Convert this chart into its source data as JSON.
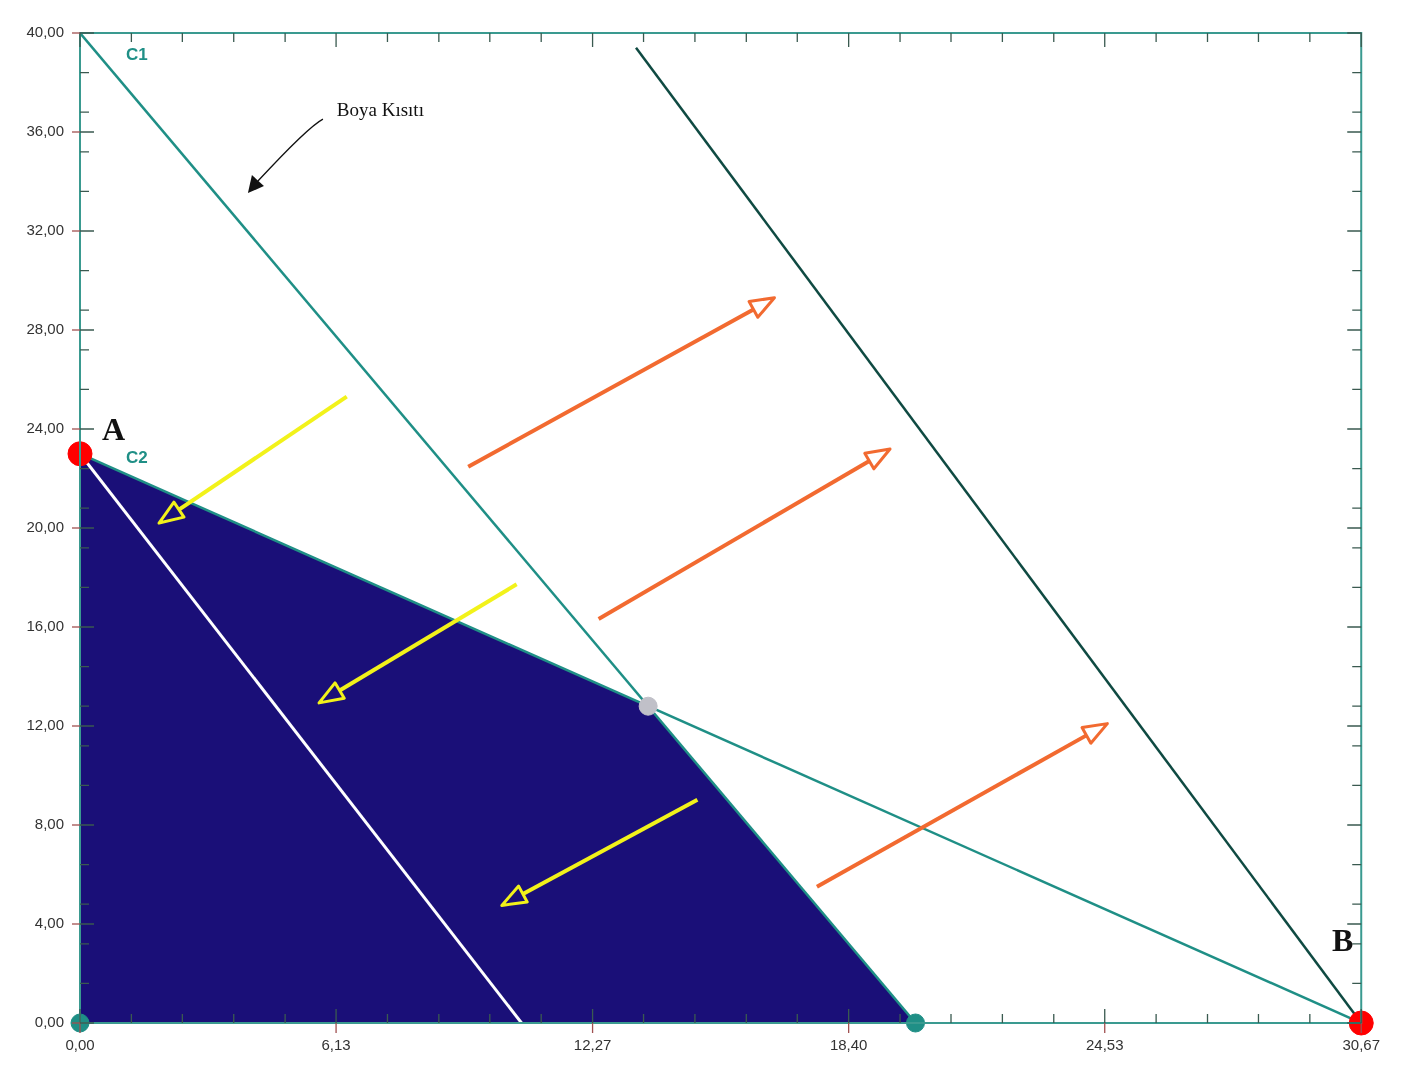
{
  "chart_data": {
    "type": "line",
    "xlim": [
      0,
      30.67
    ],
    "ylim": [
      0,
      40
    ],
    "xticks": [
      {
        "value": 0,
        "label": "0,00"
      },
      {
        "value": 1.23,
        "label": null
      },
      {
        "value": 2.45,
        "label": null
      },
      {
        "value": 3.68,
        "label": null
      },
      {
        "value": 4.91,
        "label": null
      },
      {
        "value": 6.13,
        "label": "6,13"
      },
      {
        "value": 7.36,
        "label": null
      },
      {
        "value": 8.59,
        "label": null
      },
      {
        "value": 9.81,
        "label": null
      },
      {
        "value": 11.04,
        "label": null
      },
      {
        "value": 12.27,
        "label": "12,27"
      },
      {
        "value": 13.49,
        "label": null
      },
      {
        "value": 14.72,
        "label": null
      },
      {
        "value": 15.95,
        "label": null
      },
      {
        "value": 17.17,
        "label": null
      },
      {
        "value": 18.4,
        "label": "18,40"
      },
      {
        "value": 19.63,
        "label": null
      },
      {
        "value": 20.85,
        "label": null
      },
      {
        "value": 22.08,
        "label": null
      },
      {
        "value": 23.31,
        "label": null
      },
      {
        "value": 24.53,
        "label": "24,53"
      },
      {
        "value": 25.76,
        "label": null
      },
      {
        "value": 26.99,
        "label": null
      },
      {
        "value": 28.21,
        "label": null
      },
      {
        "value": 29.44,
        "label": null
      },
      {
        "value": 30.67,
        "label": "30,67"
      }
    ],
    "yticks": [
      {
        "value": 0,
        "label": "0,00"
      },
      {
        "value": 1.6,
        "label": null
      },
      {
        "value": 3.2,
        "label": null
      },
      {
        "value": 4,
        "label": "4,00"
      },
      {
        "value": 4.8,
        "label": null
      },
      {
        "value": 6.4,
        "label": null
      },
      {
        "value": 8,
        "label": "8,00"
      },
      {
        "value": 9.6,
        "label": null
      },
      {
        "value": 11.2,
        "label": null
      },
      {
        "value": 12,
        "label": "12,00"
      },
      {
        "value": 12.8,
        "label": null
      },
      {
        "value": 14.4,
        "label": null
      },
      {
        "value": 16,
        "label": "16,00"
      },
      {
        "value": 17.6,
        "label": null
      },
      {
        "value": 19.2,
        "label": null
      },
      {
        "value": 20,
        "label": "20,00"
      },
      {
        "value": 20.8,
        "label": null
      },
      {
        "value": 22.4,
        "label": null
      },
      {
        "value": 24,
        "label": "24,00"
      },
      {
        "value": 25.6,
        "label": null
      },
      {
        "value": 27.2,
        "label": null
      },
      {
        "value": 28,
        "label": "28,00"
      },
      {
        "value": 28.8,
        "label": null
      },
      {
        "value": 30.4,
        "label": null
      },
      {
        "value": 32,
        "label": "32,00"
      },
      {
        "value": 33.6,
        "label": null
      },
      {
        "value": 35.2,
        "label": null
      },
      {
        "value": 36,
        "label": "36,00"
      },
      {
        "value": 36.8,
        "label": null
      },
      {
        "value": 38.4,
        "label": null
      },
      {
        "value": 40,
        "label": "40,00"
      }
    ],
    "grid": false,
    "legend": false,
    "series": [
      {
        "type": "area",
        "color": "#1a0f78",
        "x": [
          0,
          0,
          13.6,
          20
        ],
        "values": [
          0,
          23,
          12.8,
          0
        ]
      },
      {
        "name": "C1",
        "color": "#1f8f86",
        "x": [
          0,
          20
        ],
        "values": [
          40,
          0
        ]
      },
      {
        "name": "C2",
        "color": "#1f8f86",
        "x": [
          0,
          30.67
        ],
        "values": [
          23,
          0
        ]
      },
      {
        "color": "#0f4a42",
        "x": [
          13.31,
          30.67
        ],
        "values": [
          39.4,
          0
        ]
      },
      {
        "color": "#ffffff",
        "x": [
          0,
          10.57
        ],
        "values": [
          23,
          0
        ]
      },
      {
        "type": "scatter",
        "marker": "circle",
        "color": "#ff0000",
        "x": [
          0,
          30.67
        ],
        "values": [
          23,
          0
        ]
      },
      {
        "type": "scatter",
        "marker": "circle",
        "color": "#c0c0c8",
        "x": [
          13.6
        ],
        "values": [
          12.8
        ]
      },
      {
        "type": "scatter",
        "marker": "circle",
        "color": "#1f8f86",
        "x": [
          0,
          20
        ],
        "values": [
          0,
          0
        ]
      }
    ],
    "annotations": [
      {
        "text": "A",
        "x": 0,
        "y": 23
      },
      {
        "text": "B",
        "x": 30.67,
        "y": 0
      },
      "Boya Kısıtı"
    ]
  }
}
